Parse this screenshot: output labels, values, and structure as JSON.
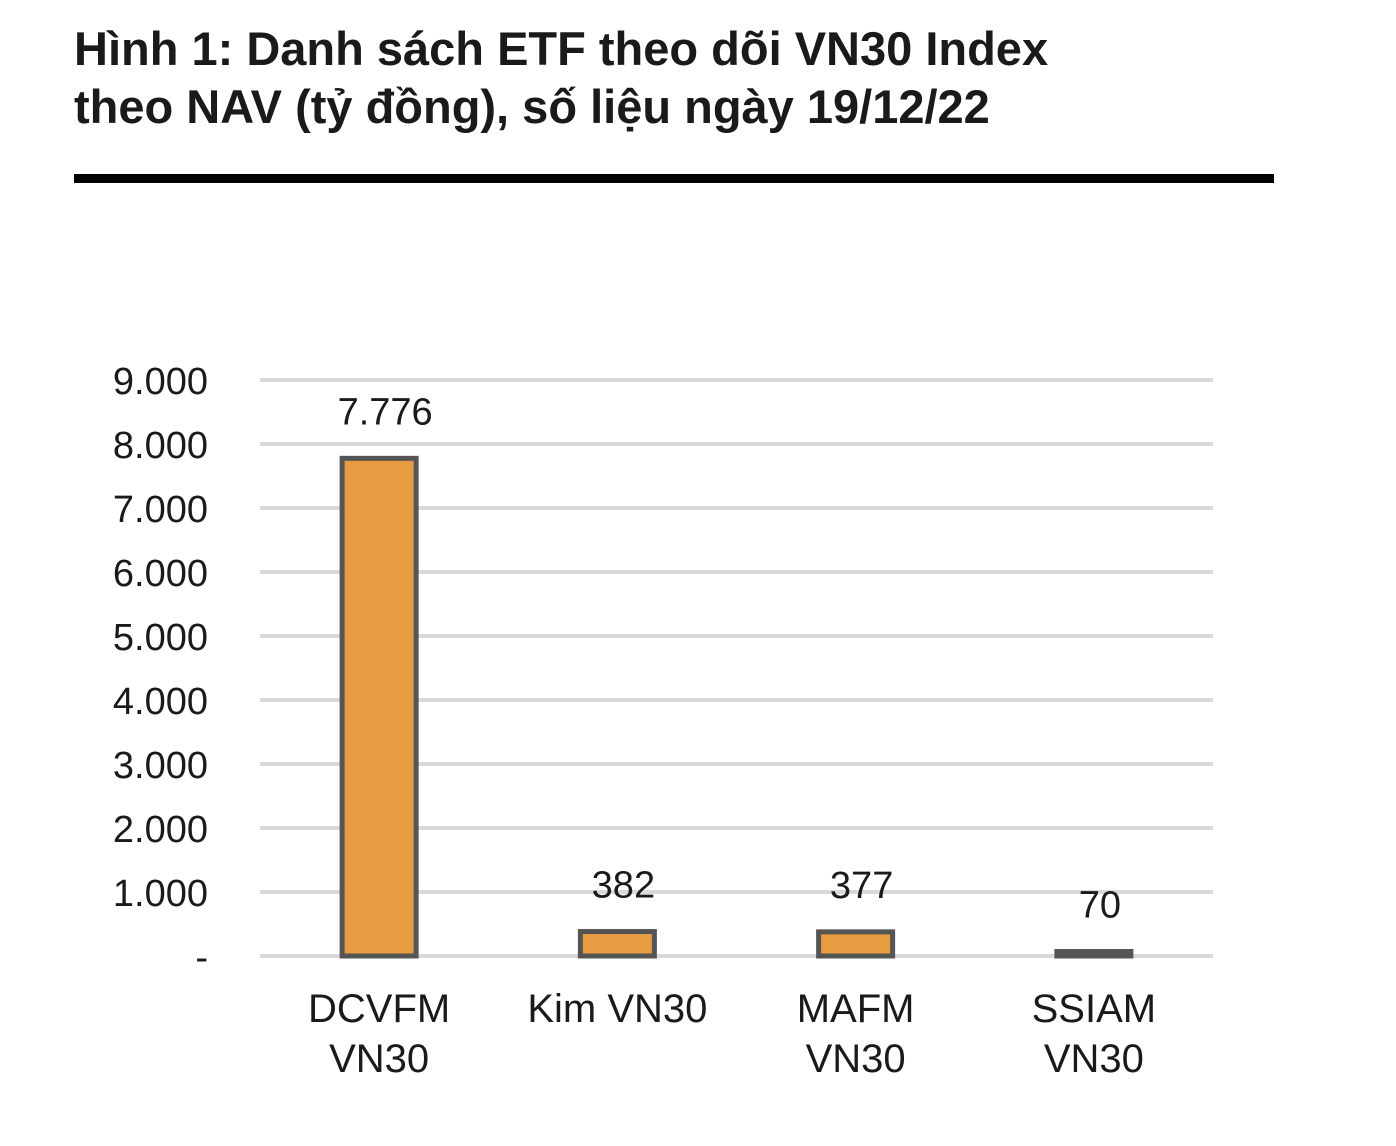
{
  "title_lines": [
    "Hình 1: Danh sách ETF theo dõi VN30 Index",
    "theo NAV (tỷ đồng), số liệu ngày 19/12/22"
  ],
  "chart_data": {
    "type": "bar",
    "categories": [
      [
        "DCVFM",
        "VN30"
      ],
      [
        "Kim VN30"
      ],
      [
        "MAFM",
        "VN30"
      ],
      [
        "SSIAM",
        "VN30"
      ]
    ],
    "values": [
      7776,
      382,
      377,
      70
    ],
    "data_labels": [
      "7.776",
      "382",
      "377",
      "70"
    ],
    "y_ticks": [
      {
        "value": 0,
        "label": "-"
      },
      {
        "value": 1000,
        "label": "1.000"
      },
      {
        "value": 2000,
        "label": "2.000"
      },
      {
        "value": 3000,
        "label": "3.000"
      },
      {
        "value": 4000,
        "label": "4.000"
      },
      {
        "value": 5000,
        "label": "5.000"
      },
      {
        "value": 6000,
        "label": "6.000"
      },
      {
        "value": 7000,
        "label": "7.000"
      },
      {
        "value": 8000,
        "label": "8.000"
      },
      {
        "value": 9000,
        "label": "9.000"
      }
    ],
    "ylim": [
      0,
      9000
    ],
    "grid": true,
    "legend": "none",
    "colors": {
      "bar_fill": "#E89C41",
      "bar_stroke": "#555555",
      "grid": "#D9D9D9"
    }
  }
}
